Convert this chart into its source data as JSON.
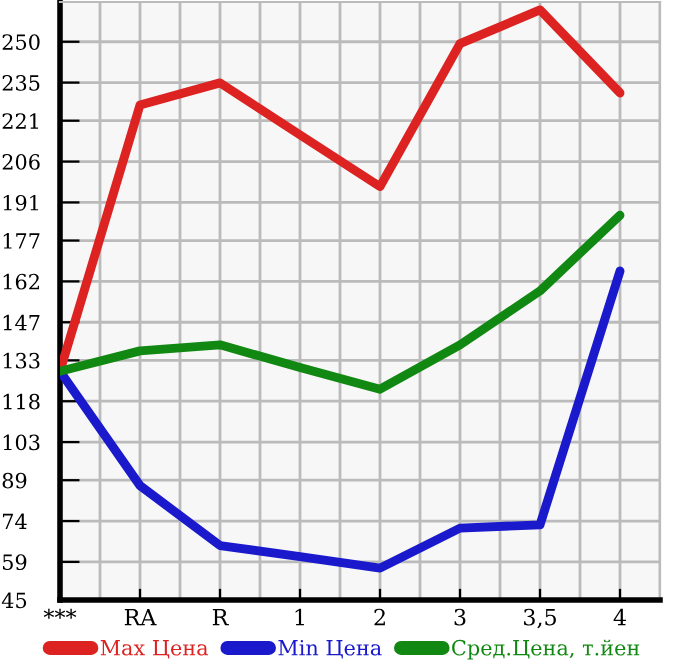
{
  "chart_data": {
    "type": "line",
    "categories": [
      "***",
      "RA",
      "R",
      "1",
      "2",
      "3",
      "3,5",
      "4"
    ],
    "series": [
      {
        "name": "Max Цена",
        "color": "#dd2222",
        "values": [
          129,
          226.8,
          234.9,
          215.8,
          196.8,
          249.3,
          261.7,
          231.2
        ]
      },
      {
        "name": "Min Цена",
        "color": "#1a1acc",
        "values": [
          129,
          87,
          65,
          60.9,
          56.7,
          71.4,
          72.6,
          165.8
        ]
      },
      {
        "name": "Сред.Цена, т.йен",
        "color": "#118811",
        "values": [
          129,
          136.5,
          138.7,
          130.4,
          122.4,
          138.7,
          158.5,
          186.3
        ]
      }
    ],
    "ylim": [
      45,
      264.6
    ],
    "yticks": [
      45,
      59,
      74,
      89,
      103,
      118,
      133,
      147,
      162,
      177,
      191,
      206,
      221,
      235,
      250
    ],
    "grid": true,
    "legend": "bottom",
    "marker": "none",
    "line_style": "solid"
  }
}
